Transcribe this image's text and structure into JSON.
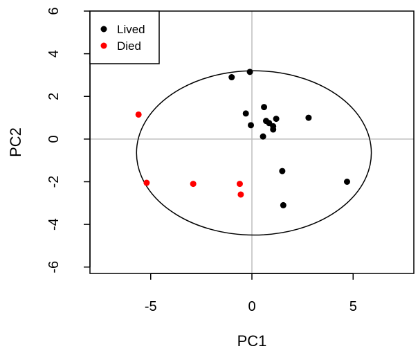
{
  "chart_data": {
    "type": "scatter",
    "title": "",
    "xlabel": "PC1",
    "ylabel": "PC2",
    "xlim": [
      -8,
      8
    ],
    "ylim": [
      -6.3,
      6
    ],
    "xticks": [
      -5,
      0,
      5
    ],
    "xtick_labels": [
      "-5",
      "0",
      "5"
    ],
    "yticks": [
      -6,
      -4,
      -2,
      0,
      2,
      4,
      6
    ],
    "ytick_labels": [
      "-6",
      "-4",
      "-2",
      "0",
      "2",
      "4",
      "6"
    ],
    "reference_lines": {
      "x": 0,
      "y": 0,
      "color": "#bebebe"
    },
    "ellipse": {
      "cx": 0.1,
      "cy": -0.65,
      "rx": 5.8,
      "ry": 3.85
    },
    "legend": {
      "position": "top-left"
    },
    "series": [
      {
        "name": "Lived",
        "color": "#000000",
        "points": [
          {
            "x": -1.0,
            "y": 2.9
          },
          {
            "x": -0.1,
            "y": 3.15
          },
          {
            "x": -0.3,
            "y": 1.2
          },
          {
            "x": 0.6,
            "y": 1.5
          },
          {
            "x": -0.05,
            "y": 0.65
          },
          {
            "x": 0.7,
            "y": 0.85
          },
          {
            "x": 0.85,
            "y": 0.75
          },
          {
            "x": 1.2,
            "y": 0.95
          },
          {
            "x": 1.05,
            "y": 0.6
          },
          {
            "x": 1.05,
            "y": 0.45
          },
          {
            "x": 0.55,
            "y": 0.12
          },
          {
            "x": 2.8,
            "y": 1.0
          },
          {
            "x": 1.5,
            "y": -1.5
          },
          {
            "x": 4.7,
            "y": -2.0
          },
          {
            "x": 1.55,
            "y": -3.1
          }
        ]
      },
      {
        "name": "Died",
        "color": "#ff0000",
        "points": [
          {
            "x": -5.6,
            "y": 1.15
          },
          {
            "x": -5.2,
            "y": -2.05
          },
          {
            "x": -2.9,
            "y": -2.1
          },
          {
            "x": -0.6,
            "y": -2.1
          },
          {
            "x": -0.55,
            "y": -2.6
          }
        ]
      }
    ]
  }
}
